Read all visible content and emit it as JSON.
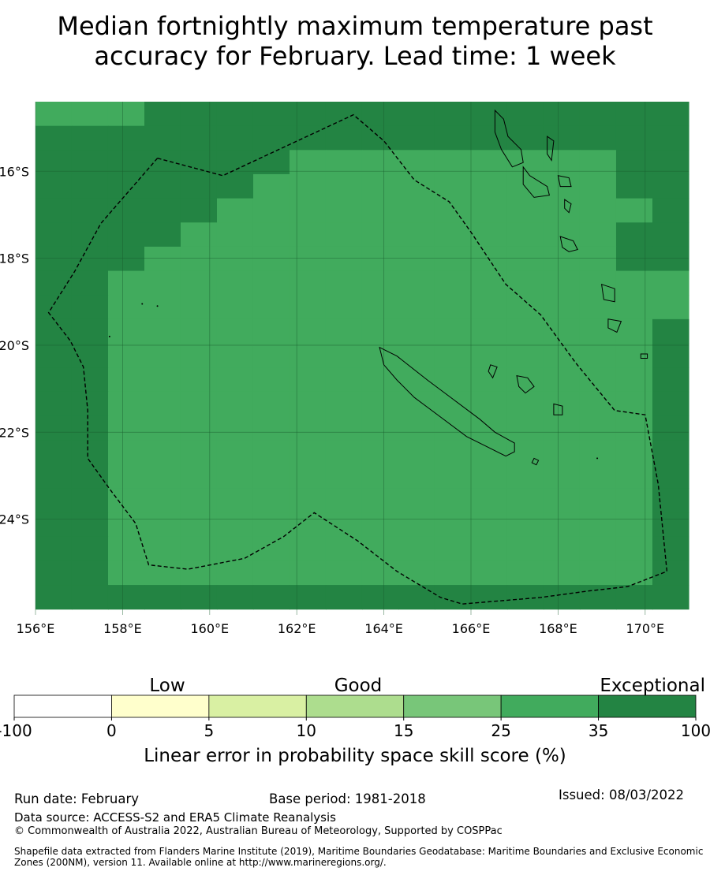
{
  "title_line1": "Median fortnightly maximum temperature past",
  "title_line2": "accuracy for February. Lead time: 1 week",
  "map": {
    "lon_range": [
      156,
      171
    ],
    "lat_range": [
      -26.2,
      -14.4
    ],
    "grid": true,
    "lon_ticks": [
      "156°E",
      "158°E",
      "160°E",
      "162°E",
      "164°E",
      "166°E",
      "168°E",
      "170°E"
    ],
    "lat_ticks": [
      "16°S",
      "18°S",
      "20°S",
      "22°S",
      "24°S"
    ],
    "cell_grid": {
      "lon0": 156.0,
      "lat_top": -14.4,
      "dlon": 0.8333,
      "dlat": 0.5556,
      "cols": 18,
      "rows": 21,
      "class_colors": {
        "1": "#f7f7c6",
        "2": "#d8eda0",
        "3": "#b4e08d",
        "4": "#78c679",
        "5": "#41ab5d",
        "6": "#238443"
      },
      "rows_data": [
        "555666666666666666",
        "666666666666666666",
        "666666655555555566",
        "666666555555555566",
        "666665555555555556",
        "666655555555555566",
        "666555555555555566",
        "665555555555555555",
        "665555555555555555",
        "665555555555555556",
        "665555555555555556",
        "665555555555555556",
        "665555555555555556",
        "665555555555555556",
        "665555555555555556",
        "665555555555555556",
        "665555555555555556",
        "665555555555555556",
        "665555555555555556",
        "665555555555555556",
        "666666666666666666"
      ]
    },
    "eez_boundary": [
      [
        158.8,
        -15.7
      ],
      [
        157.5,
        -17.2
      ],
      [
        156.9,
        -18.3
      ],
      [
        156.3,
        -19.25
      ],
      [
        156.8,
        -19.9
      ],
      [
        157.1,
        -20.5
      ],
      [
        157.2,
        -21.5
      ],
      [
        157.2,
        -22.6
      ],
      [
        157.7,
        -23.3
      ],
      [
        158.3,
        -24.1
      ],
      [
        158.6,
        -25.05
      ],
      [
        159.5,
        -25.15
      ],
      [
        160.8,
        -24.9
      ],
      [
        161.7,
        -24.4
      ],
      [
        162.4,
        -23.85
      ],
      [
        163.4,
        -24.5
      ],
      [
        164.3,
        -25.2
      ],
      [
        165.3,
        -25.8
      ],
      [
        165.8,
        -25.95
      ],
      [
        167.6,
        -25.8
      ],
      [
        168.7,
        -25.65
      ],
      [
        169.6,
        -25.55
      ],
      [
        170.5,
        -25.2
      ],
      [
        170.3,
        -23.2
      ],
      [
        170.0,
        -21.6
      ],
      [
        169.3,
        -21.5
      ],
      [
        168.4,
        -20.4
      ],
      [
        167.6,
        -19.3
      ],
      [
        166.8,
        -18.6
      ],
      [
        166.0,
        -17.4
      ],
      [
        165.5,
        -16.7
      ],
      [
        164.7,
        -16.2
      ],
      [
        164.0,
        -15.3
      ],
      [
        163.3,
        -14.7
      ],
      [
        160.3,
        -16.1
      ],
      [
        158.8,
        -15.7
      ]
    ],
    "coastlines": [
      [
        [
          163.9,
          -20.05
        ],
        [
          164.3,
          -20.25
        ],
        [
          165.0,
          -20.8
        ],
        [
          165.6,
          -21.25
        ],
        [
          166.2,
          -21.7
        ],
        [
          166.55,
          -22.0
        ],
        [
          167.0,
          -22.25
        ],
        [
          167.0,
          -22.45
        ],
        [
          166.8,
          -22.55
        ],
        [
          166.4,
          -22.35
        ],
        [
          165.9,
          -22.1
        ],
        [
          165.3,
          -21.65
        ],
        [
          164.7,
          -21.2
        ],
        [
          164.3,
          -20.8
        ],
        [
          164.0,
          -20.45
        ],
        [
          163.9,
          -20.05
        ]
      ],
      [
        [
          167.05,
          -20.7
        ],
        [
          167.3,
          -20.75
        ],
        [
          167.45,
          -20.95
        ],
        [
          167.25,
          -21.1
        ],
        [
          167.1,
          -20.95
        ],
        [
          167.05,
          -20.7
        ]
      ],
      [
        [
          166.45,
          -20.45
        ],
        [
          166.6,
          -20.5
        ],
        [
          166.5,
          -20.75
        ],
        [
          166.4,
          -20.6
        ],
        [
          166.45,
          -20.45
        ]
      ],
      [
        [
          167.9,
          -21.35
        ],
        [
          168.1,
          -21.4
        ],
        [
          168.1,
          -21.6
        ],
        [
          167.9,
          -21.6
        ],
        [
          167.9,
          -21.35
        ]
      ],
      [
        [
          167.45,
          -22.6
        ],
        [
          167.55,
          -22.65
        ],
        [
          167.5,
          -22.75
        ],
        [
          167.4,
          -22.7
        ],
        [
          167.45,
          -22.6
        ]
      ],
      [
        [
          166.55,
          -14.6
        ],
        [
          166.75,
          -14.8
        ],
        [
          166.85,
          -15.2
        ],
        [
          167.15,
          -15.5
        ],
        [
          167.2,
          -15.8
        ],
        [
          166.95,
          -15.9
        ],
        [
          166.7,
          -15.5
        ],
        [
          166.55,
          -15.1
        ],
        [
          166.55,
          -14.6
        ]
      ],
      [
        [
          167.75,
          -15.2
        ],
        [
          167.9,
          -15.3
        ],
        [
          167.85,
          -15.75
        ],
        [
          167.75,
          -15.6
        ],
        [
          167.75,
          -15.2
        ]
      ],
      [
        [
          167.2,
          -15.9
        ],
        [
          167.35,
          -16.1
        ],
        [
          167.75,
          -16.35
        ],
        [
          167.8,
          -16.55
        ],
        [
          167.45,
          -16.6
        ],
        [
          167.2,
          -16.3
        ],
        [
          167.2,
          -15.9
        ]
      ],
      [
        [
          168.0,
          -16.1
        ],
        [
          168.25,
          -16.15
        ],
        [
          168.3,
          -16.35
        ],
        [
          168.05,
          -16.35
        ],
        [
          168.0,
          -16.1
        ]
      ],
      [
        [
          168.15,
          -16.65
        ],
        [
          168.3,
          -16.75
        ],
        [
          168.25,
          -16.95
        ],
        [
          168.15,
          -16.85
        ],
        [
          168.15,
          -16.65
        ]
      ],
      [
        [
          168.05,
          -17.5
        ],
        [
          168.35,
          -17.6
        ],
        [
          168.45,
          -17.8
        ],
        [
          168.25,
          -17.85
        ],
        [
          168.1,
          -17.75
        ],
        [
          168.05,
          -17.5
        ]
      ],
      [
        [
          169.0,
          -18.6
        ],
        [
          169.3,
          -18.7
        ],
        [
          169.3,
          -19.0
        ],
        [
          169.05,
          -18.95
        ],
        [
          169.0,
          -18.6
        ]
      ],
      [
        [
          169.15,
          -19.4
        ],
        [
          169.45,
          -19.45
        ],
        [
          169.35,
          -19.7
        ],
        [
          169.15,
          -19.6
        ],
        [
          169.15,
          -19.4
        ]
      ],
      [
        [
          169.9,
          -20.2
        ],
        [
          170.05,
          -20.2
        ],
        [
          170.05,
          -20.3
        ],
        [
          169.9,
          -20.3
        ],
        [
          169.9,
          -20.2
        ]
      ]
    ]
  },
  "legend": {
    "category_labels": [
      "Low",
      "Good",
      "Exceptional"
    ],
    "bins": [
      {
        "color": "#ffffff"
      },
      {
        "color": "#ffffcc"
      },
      {
        "color": "#d9f0a3"
      },
      {
        "color": "#addd8e"
      },
      {
        "color": "#78c679"
      },
      {
        "color": "#41ab5d"
      },
      {
        "color": "#238443"
      }
    ],
    "tick_labels": [
      "-100",
      "0",
      "5",
      "10",
      "15",
      "25",
      "35",
      "100"
    ],
    "axis_label": "Linear error in probability space skill score (%)"
  },
  "footer": {
    "run_date": "Run date: February",
    "base_period": "Base period: 1981-2018",
    "issued": "Issued: 08/03/2022",
    "data_source": "Data source: ACCESS-S2 and ERA5 Climate Reanalysis",
    "copyright": "© Commonwealth of Australia 2022, Australian Bureau of Meteorology, Supported by COSPPac",
    "shapefile_line1": "Shapefile data extracted from Flanders Marine Institute (2019), Maritime Boundaries Geodatabase: Maritime Boundaries and Exclusive Economic",
    "shapefile_line2": "Zones (200NM), version 11. Available online at http://www.marineregions.org/."
  }
}
